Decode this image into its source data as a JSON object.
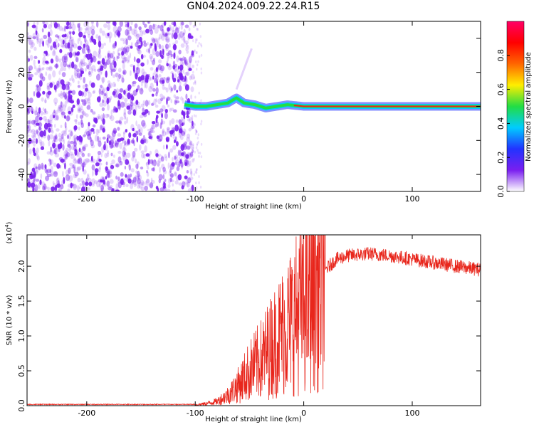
{
  "title": "GN04.2024.009.22.24.R15",
  "colors": {
    "spectrum_purple": "#7a1ff0",
    "track_green": "#22dd44",
    "track_red": "#e8261c",
    "snr_line": "#e8261c",
    "axis": "#000000"
  },
  "chart_data": [
    {
      "type": "heatmap",
      "name": "spectrogram",
      "title": "GN04.2024.009.22.24.R15",
      "xlabel": "Height of straight line (km)",
      "ylabel": "Frequency (Hz)",
      "xlim": [
        -255,
        163
      ],
      "ylim": [
        -50,
        50
      ],
      "x_ticks": [
        -200,
        -100,
        0,
        100
      ],
      "y_ticks": [
        -40,
        -20,
        0,
        20,
        40
      ],
      "noise_region_x": [
        -255,
        -102
      ],
      "signal_track": {
        "x": [
          -110,
          -100,
          -90,
          -80,
          -70,
          -62,
          -55,
          -45,
          -35,
          -25,
          -15,
          0,
          20,
          50,
          100,
          163
        ],
        "frequency": [
          1,
          0,
          0,
          1,
          2,
          5,
          2,
          1,
          -1,
          0,
          1,
          0,
          0,
          0,
          0,
          0
        ]
      },
      "colorbar": {
        "label": "Normalized spectral amplitude",
        "range": [
          0,
          1
        ],
        "ticks": [
          0.0,
          0.2,
          0.4,
          0.6,
          0.8
        ],
        "tick_labels": [
          "0.0",
          "0.2",
          "0.4",
          "0.6",
          "0.8"
        ],
        "colors": [
          "#ffffff",
          "#7a1ff0",
          "#2233ff",
          "#00ccff",
          "#22dd44",
          "#ffee00",
          "#ff6600",
          "#ff0000",
          "#ff0066"
        ]
      }
    },
    {
      "type": "line",
      "name": "snr",
      "xlabel": "Height of straight line (km)",
      "ylabel": "SNR (10 * v/v)",
      "scale_label": "(x10",
      "scale_exponent": "4",
      "xlim": [
        -255,
        163
      ],
      "ylim": [
        0,
        2.45
      ],
      "x_ticks": [
        -200,
        -100,
        0,
        100
      ],
      "y_ticks": [
        0.0,
        0.5,
        1.0,
        1.5,
        2.0
      ],
      "y_tick_labels": [
        "0.0",
        "0.5",
        "1.0",
        "1.5",
        "2.0"
      ],
      "envelope": {
        "x": [
          -255,
          -100,
          -90,
          -80,
          -70,
          -60,
          -50,
          -40,
          -30,
          -20,
          -10,
          0,
          10,
          20,
          30,
          40,
          60,
          80,
          100,
          120,
          140,
          163
        ],
        "y": [
          0.01,
          0.01,
          0.03,
          0.06,
          0.15,
          0.3,
          0.5,
          0.65,
          0.85,
          1.05,
          1.25,
          1.45,
          1.7,
          1.95,
          2.1,
          2.15,
          2.18,
          2.15,
          2.1,
          2.05,
          2.0,
          1.95
        ]
      }
    }
  ]
}
